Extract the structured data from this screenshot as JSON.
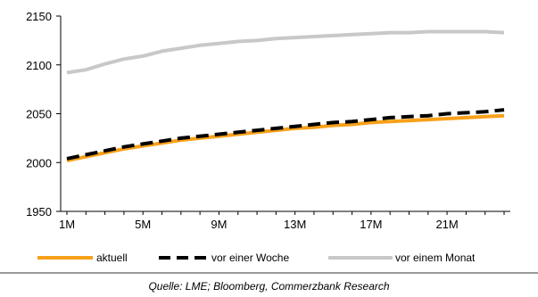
{
  "chart_data": {
    "type": "line",
    "x": [
      "1M",
      "2M",
      "3M",
      "4M",
      "5M",
      "6M",
      "7M",
      "8M",
      "9M",
      "10M",
      "11M",
      "12M",
      "13M",
      "14M",
      "15M",
      "16M",
      "17M",
      "18M",
      "19M",
      "20M",
      "21M",
      "22M",
      "23M",
      "24M"
    ],
    "xtick_labels": [
      "1M",
      "5M",
      "9M",
      "13M",
      "17M",
      "21M"
    ],
    "ylim": [
      1950,
      2150
    ],
    "yticks": [
      1950,
      2000,
      2050,
      2100,
      2150
    ],
    "series": [
      {
        "name": "aktuell",
        "color": "#f7a11a",
        "dash": "solid",
        "values": [
          2002,
          2006,
          2010,
          2014,
          2017,
          2020,
          2023,
          2025,
          2027,
          2029,
          2031,
          2033,
          2035,
          2036,
          2038,
          2039,
          2041,
          2042,
          2043,
          2044,
          2045,
          2046,
          2047,
          2048
        ]
      },
      {
        "name": "vor einer Woche",
        "color": "#000000",
        "dash": "dashed",
        "values": [
          2004,
          2008,
          2012,
          2016,
          2019,
          2022,
          2025,
          2027,
          2029,
          2031,
          2033,
          2035,
          2037,
          2039,
          2041,
          2042,
          2044,
          2046,
          2047,
          2048,
          2050,
          2051,
          2052,
          2054
        ]
      },
      {
        "name": "vor einem Monat",
        "color": "#c8c8c8",
        "dash": "solid",
        "values": [
          2092,
          2095,
          2101,
          2106,
          2109,
          2114,
          2117,
          2120,
          2122,
          2124,
          2125,
          2127,
          2128,
          2129,
          2130,
          2131,
          2132,
          2133,
          2133,
          2134,
          2134,
          2134,
          2134,
          2133
        ]
      }
    ],
    "legend_position": "bottom",
    "grid": false
  },
  "source": "Quelle: LME; Bloomberg, Commerzbank Research"
}
